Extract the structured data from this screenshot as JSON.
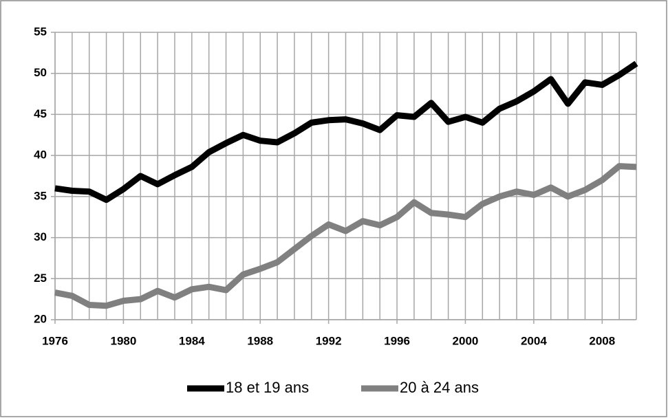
{
  "chart_data": {
    "type": "line",
    "x": [
      1976,
      1977,
      1978,
      1979,
      1980,
      1981,
      1982,
      1983,
      1984,
      1985,
      1986,
      1987,
      1988,
      1989,
      1990,
      1991,
      1992,
      1993,
      1994,
      1995,
      1996,
      1997,
      1998,
      1999,
      2000,
      2001,
      2002,
      2003,
      2004,
      2005,
      2006,
      2007,
      2008,
      2009,
      2010
    ],
    "series": [
      {
        "name": "18 et 19 ans",
        "color": "#000000",
        "values": [
          36.0,
          35.7,
          35.6,
          34.6,
          35.9,
          37.5,
          36.5,
          37.6,
          38.6,
          40.4,
          41.5,
          42.5,
          41.8,
          41.6,
          42.7,
          44.0,
          44.3,
          44.4,
          43.9,
          43.1,
          44.9,
          44.7,
          46.4,
          44.1,
          44.7,
          44.0,
          45.7,
          46.6,
          47.8,
          49.3,
          46.3,
          48.9,
          48.6,
          49.8,
          51.2
        ]
      },
      {
        "name": "20 à 24 ans",
        "color": "#808080",
        "values": [
          23.3,
          22.9,
          21.8,
          21.7,
          22.3,
          22.5,
          23.5,
          22.7,
          23.7,
          24.0,
          23.6,
          25.5,
          26.2,
          27.0,
          28.6,
          30.2,
          31.6,
          30.8,
          32.0,
          31.5,
          32.5,
          34.3,
          33.0,
          32.8,
          32.5,
          34.1,
          35.0,
          35.6,
          35.2,
          36.1,
          35.0,
          35.8,
          37.0,
          38.7,
          38.6
        ]
      }
    ],
    "xlim": [
      1976,
      2010
    ],
    "xticks": [
      1976,
      1980,
      1984,
      1988,
      1992,
      1996,
      2000,
      2004,
      2008
    ],
    "ylim": [
      20,
      55
    ],
    "yticks": [
      20,
      25,
      30,
      35,
      40,
      45,
      50,
      55
    ],
    "grid": true,
    "legend": "bottom"
  }
}
